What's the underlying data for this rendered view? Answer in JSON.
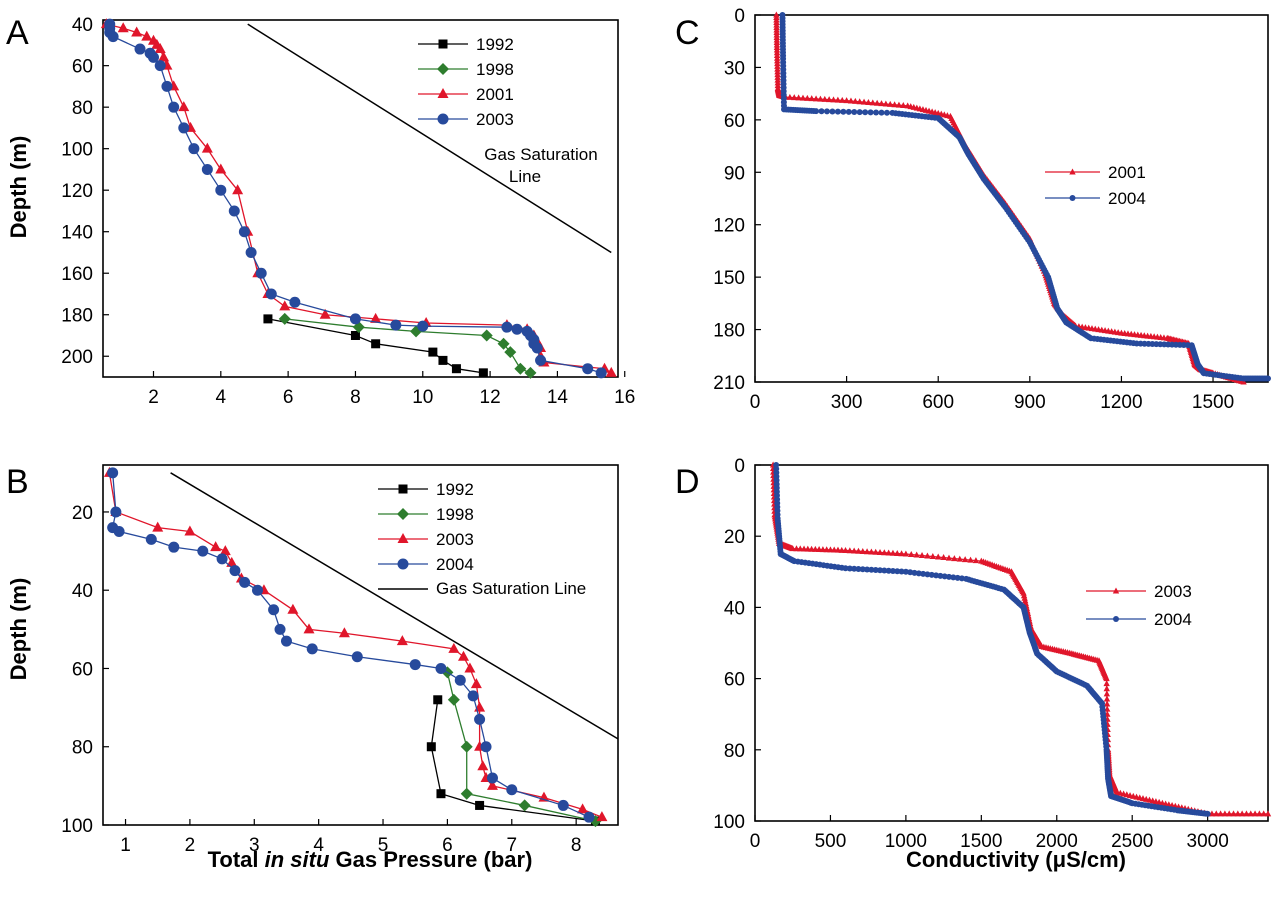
{
  "colors": {
    "1992": "#000000",
    "1998": "#2e7d2e",
    "2001": "#e0162b",
    "2003": "#e0162b",
    "2004": "#274a9c",
    "2003_blue": "#274a9c",
    "line": "#000000"
  },
  "labels": {
    "x_bottom_left": [
      "Total ",
      "in situ",
      " Gas Pressure (bar)"
    ],
    "x_bottom_right": "Conductivity (μS/cm)",
    "y_left": "Depth (m)"
  },
  "chart_data": [
    {
      "panel": "A",
      "type": "line",
      "xlim": [
        0.5,
        15.8
      ],
      "ylim": [
        210,
        38
      ],
      "xticks": [
        2,
        4,
        6,
        8,
        10,
        12,
        14,
        16
      ],
      "yticks": [
        40,
        60,
        80,
        100,
        120,
        140,
        160,
        180,
        200
      ],
      "ylabel": "Depth (m)",
      "legend": "top-right",
      "series": [
        {
          "name": "1992",
          "color_key": "1992",
          "marker": "square",
          "x": [
            5.4,
            8.0,
            8.6,
            10.3,
            10.6,
            11.0,
            11.8
          ],
          "y": [
            182,
            190,
            194,
            198,
            202,
            206,
            208
          ]
        },
        {
          "name": "1998",
          "color_key": "1998",
          "marker": "diamond",
          "x": [
            5.9,
            8.1,
            9.8,
            11.9,
            12.4,
            12.6,
            12.9,
            13.2
          ],
          "y": [
            182,
            186,
            188,
            190,
            194,
            198,
            206,
            208
          ]
        },
        {
          "name": "2001",
          "color_key": "2001",
          "marker": "triangle",
          "x": [
            0.6,
            1.1,
            1.5,
            1.8,
            2.0,
            2.1,
            2.2,
            2.3,
            2.4,
            2.6,
            2.9,
            3.1,
            3.6,
            4.0,
            4.5,
            4.8,
            5.1,
            5.4,
            5.9,
            7.1,
            8.6,
            10.1,
            12.5,
            13.1,
            13.3,
            13.4,
            13.5,
            13.5,
            13.6,
            15.4,
            15.6
          ],
          "y": [
            40,
            42,
            44,
            46,
            48,
            50,
            52,
            56,
            60,
            70,
            80,
            90,
            100,
            110,
            120,
            140,
            160,
            170,
            176,
            180,
            182,
            184,
            185,
            187,
            190,
            193,
            196,
            200,
            203,
            206,
            208
          ]
        },
        {
          "name": "2003",
          "color_key": "2003_blue",
          "marker": "circle",
          "x": [
            0.7,
            0.7,
            0.7,
            0.8,
            1.6,
            1.9,
            2.0,
            2.2,
            2.4,
            2.6,
            2.9,
            3.2,
            3.6,
            4.0,
            4.4,
            4.7,
            4.9,
            5.2,
            5.5,
            6.2,
            8.0,
            9.2,
            10.0,
            12.5,
            12.8,
            13.1,
            13.2,
            13.3,
            13.3,
            13.4,
            13.5,
            14.9,
            15.3
          ],
          "y": [
            40,
            42,
            44,
            46,
            52,
            54,
            56,
            60,
            70,
            80,
            90,
            100,
            110,
            120,
            130,
            140,
            150,
            160,
            170,
            174,
            182,
            185,
            185.5,
            186,
            187,
            188,
            190,
            192,
            194,
            196,
            202,
            206,
            208
          ]
        }
      ],
      "annotation": [
        "Gas Saturation",
        "Line"
      ],
      "sat_line": {
        "x": [
          4.8,
          15.6
        ],
        "y": [
          40,
          150
        ]
      }
    },
    {
      "panel": "B",
      "type": "line",
      "xlim": [
        0.65,
        8.65
      ],
      "ylim": [
        100,
        8
      ],
      "xticks": [
        1,
        2,
        3,
        4,
        5,
        6,
        7,
        8
      ],
      "yticks": [
        20,
        40,
        60,
        80,
        100
      ],
      "xlabel": "Total in situ Gas Pressure (bar)",
      "ylabel": "Depth (m)",
      "legend": "top-right",
      "series": [
        {
          "name": "1992",
          "color_key": "1992",
          "marker": "square",
          "x": [
            5.85,
            5.75,
            5.9,
            6.5,
            8.3
          ],
          "y": [
            68,
            80,
            92,
            95,
            99
          ]
        },
        {
          "name": "1998",
          "color_key": "1998",
          "marker": "diamond",
          "x": [
            6.0,
            6.1,
            6.3,
            6.3,
            7.2,
            8.3
          ],
          "y": [
            61,
            68,
            80,
            92,
            95,
            99
          ]
        },
        {
          "name": "2003",
          "color_key": "2003",
          "marker": "triangle",
          "x": [
            0.75,
            0.85,
            1.5,
            2.0,
            2.4,
            2.55,
            2.65,
            2.8,
            3.15,
            3.6,
            3.85,
            4.4,
            5.3,
            6.1,
            6.25,
            6.35,
            6.45,
            6.5,
            6.5,
            6.55,
            6.6,
            6.7,
            7.5,
            8.1,
            8.4
          ],
          "y": [
            10,
            20,
            24,
            25,
            29,
            30,
            33,
            37,
            40,
            45,
            50,
            51,
            53,
            55,
            57,
            60,
            64,
            70,
            80,
            85,
            88,
            90,
            93,
            96,
            98
          ]
        },
        {
          "name": "2004",
          "color_key": "2004",
          "marker": "circle",
          "x": [
            0.8,
            0.85,
            0.8,
            0.9,
            1.4,
            1.75,
            2.2,
            2.5,
            2.7,
            2.85,
            3.05,
            3.3,
            3.4,
            3.5,
            3.9,
            4.6,
            5.5,
            5.9,
            6.2,
            6.4,
            6.5,
            6.6,
            6.7,
            7.0,
            7.8,
            8.2
          ],
          "y": [
            10,
            20,
            24,
            25,
            27,
            29,
            30,
            32,
            35,
            38,
            40,
            45,
            50,
            53,
            55,
            57,
            59,
            60,
            63,
            67,
            73,
            80,
            88,
            91,
            95,
            98
          ]
        }
      ],
      "annotation": "Gas Saturation Line",
      "sat_line": {
        "x": [
          1.7,
          8.65
        ],
        "y": [
          10,
          78
        ]
      }
    },
    {
      "panel": "C",
      "type": "line",
      "xlim": [
        0,
        1680
      ],
      "ylim": [
        210,
        0
      ],
      "xticks": [
        0,
        300,
        600,
        900,
        1200,
        1500
      ],
      "yticks": [
        0,
        30,
        60,
        90,
        120,
        150,
        180,
        210
      ],
      "legend": "top-right",
      "series": [
        {
          "name": "2001",
          "color_key": "2001",
          "marker": "small-triangle",
          "x": [
            70,
            72,
            75,
            80,
            100,
            300,
            500,
            640,
            690,
            750,
            820,
            900,
            950,
            980,
            1010,
            1050,
            1200,
            1350,
            1420,
            1440,
            1460,
            1500,
            1600
          ],
          "y": [
            0,
            20,
            42,
            46,
            47,
            49,
            52,
            58,
            75,
            92,
            108,
            128,
            148,
            165,
            172,
            178,
            182,
            185,
            188,
            200,
            203,
            205,
            210
          ]
        },
        {
          "name": "2004",
          "color_key": "2004",
          "marker": "small-circle",
          "x": [
            90,
            92,
            95,
            200,
            450,
            600,
            670,
            700,
            750,
            820,
            900,
            960,
            990,
            1020,
            1100,
            1250,
            1430,
            1450,
            1470,
            1600,
            1680
          ],
          "y": [
            0,
            25,
            54,
            55,
            56,
            59,
            70,
            80,
            94,
            110,
            130,
            150,
            168,
            176,
            185,
            188,
            189,
            200,
            205,
            208,
            208
          ]
        }
      ]
    },
    {
      "panel": "D",
      "type": "line",
      "xlim": [
        0,
        3400
      ],
      "ylim": [
        100,
        0
      ],
      "xticks": [
        0,
        500,
        1000,
        1500,
        2000,
        2500,
        3000
      ],
      "yticks": [
        0,
        20,
        40,
        60,
        80,
        100
      ],
      "xlabel": "Conductivity (μS/cm)",
      "legend": "top-right",
      "series": [
        {
          "name": "2003",
          "color_key": "2003",
          "marker": "small-triangle",
          "x": [
            120,
            130,
            160,
            250,
            600,
            1000,
            1500,
            1700,
            1780,
            1830,
            1900,
            2100,
            2280,
            2330,
            2340,
            2350,
            2400,
            2700,
            3000,
            3400
          ],
          "y": [
            0,
            14,
            22,
            23.5,
            24,
            25,
            27,
            30,
            36,
            46,
            51,
            53,
            55,
            60,
            80,
            87,
            92,
            95,
            98,
            98
          ]
        },
        {
          "name": "2004",
          "color_key": "2004",
          "marker": "small-circle",
          "x": [
            140,
            150,
            170,
            260,
            600,
            1000,
            1400,
            1650,
            1780,
            1820,
            1870,
            2000,
            2200,
            2300,
            2330,
            2340,
            2360,
            2500,
            2800,
            3000
          ],
          "y": [
            0,
            15,
            25,
            27,
            29,
            30,
            32,
            35,
            40,
            47,
            53,
            58,
            62,
            67,
            80,
            88,
            93,
            95,
            97,
            98
          ]
        }
      ]
    }
  ]
}
